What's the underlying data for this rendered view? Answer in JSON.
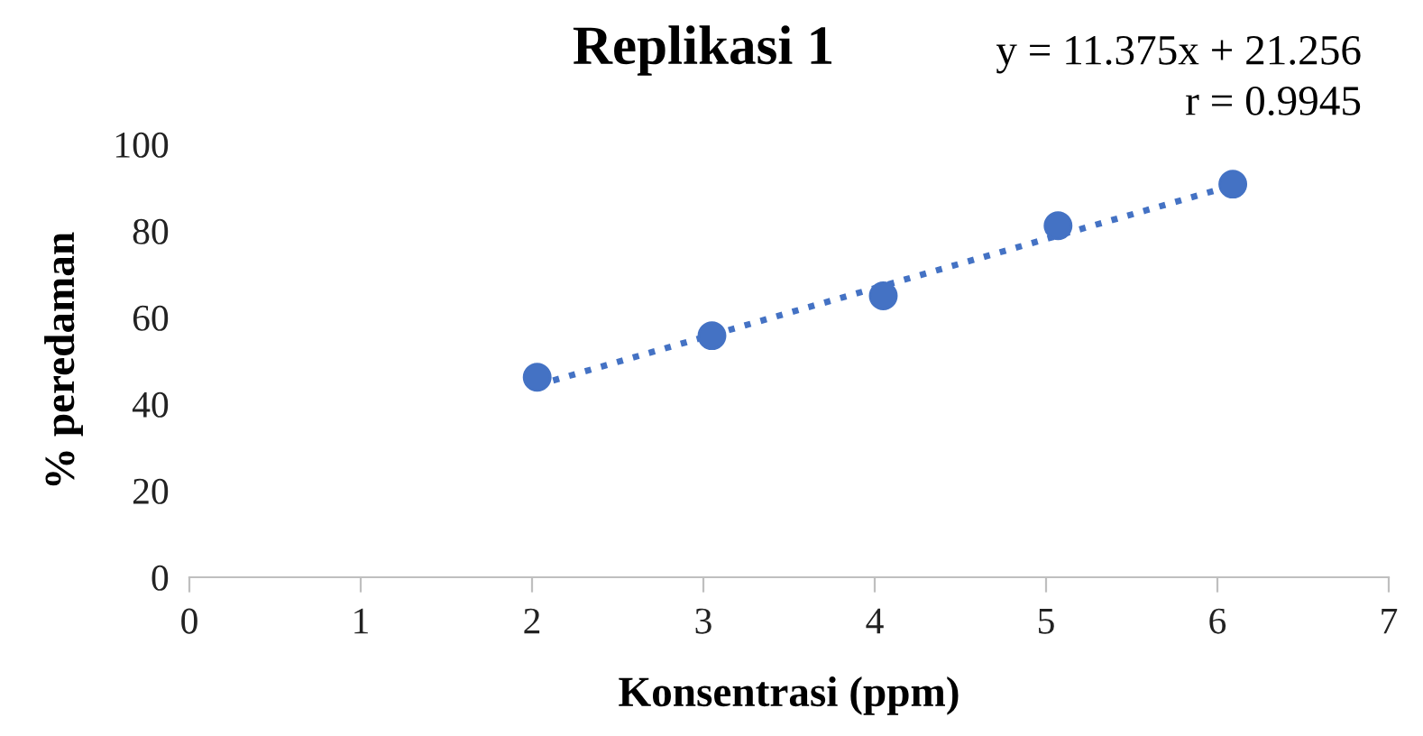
{
  "chart_data": {
    "type": "scatter",
    "title": "Replikasi 1",
    "xlabel": "Konsentrasi (ppm)",
    "ylabel": "% peredaman",
    "annotations": [
      "y = 11.375x + 21.256",
      "r = 0.9945"
    ],
    "x": [
      2.03,
      3.05,
      4.05,
      5.07,
      6.09
    ],
    "series": [
      {
        "color": "#4472c4",
        "marker": "circle",
        "values": [
          46.2,
          55.8,
          65.0,
          81.2,
          90.8
        ]
      },
      {
        "type": "line",
        "color": "#4472c4",
        "marker": "none",
        "line_style": "dotted",
        "x": [
          2.03,
          6.09
        ],
        "values": [
          44.4,
          90.5
        ]
      }
    ],
    "xlim": [
      0,
      7
    ],
    "xticks": [
      0,
      1,
      2,
      3,
      4,
      5,
      6,
      7
    ],
    "ylim": [
      0,
      100
    ],
    "yticks": [
      0,
      20,
      40,
      60,
      80,
      100
    ],
    "grid": false,
    "legend": false
  }
}
